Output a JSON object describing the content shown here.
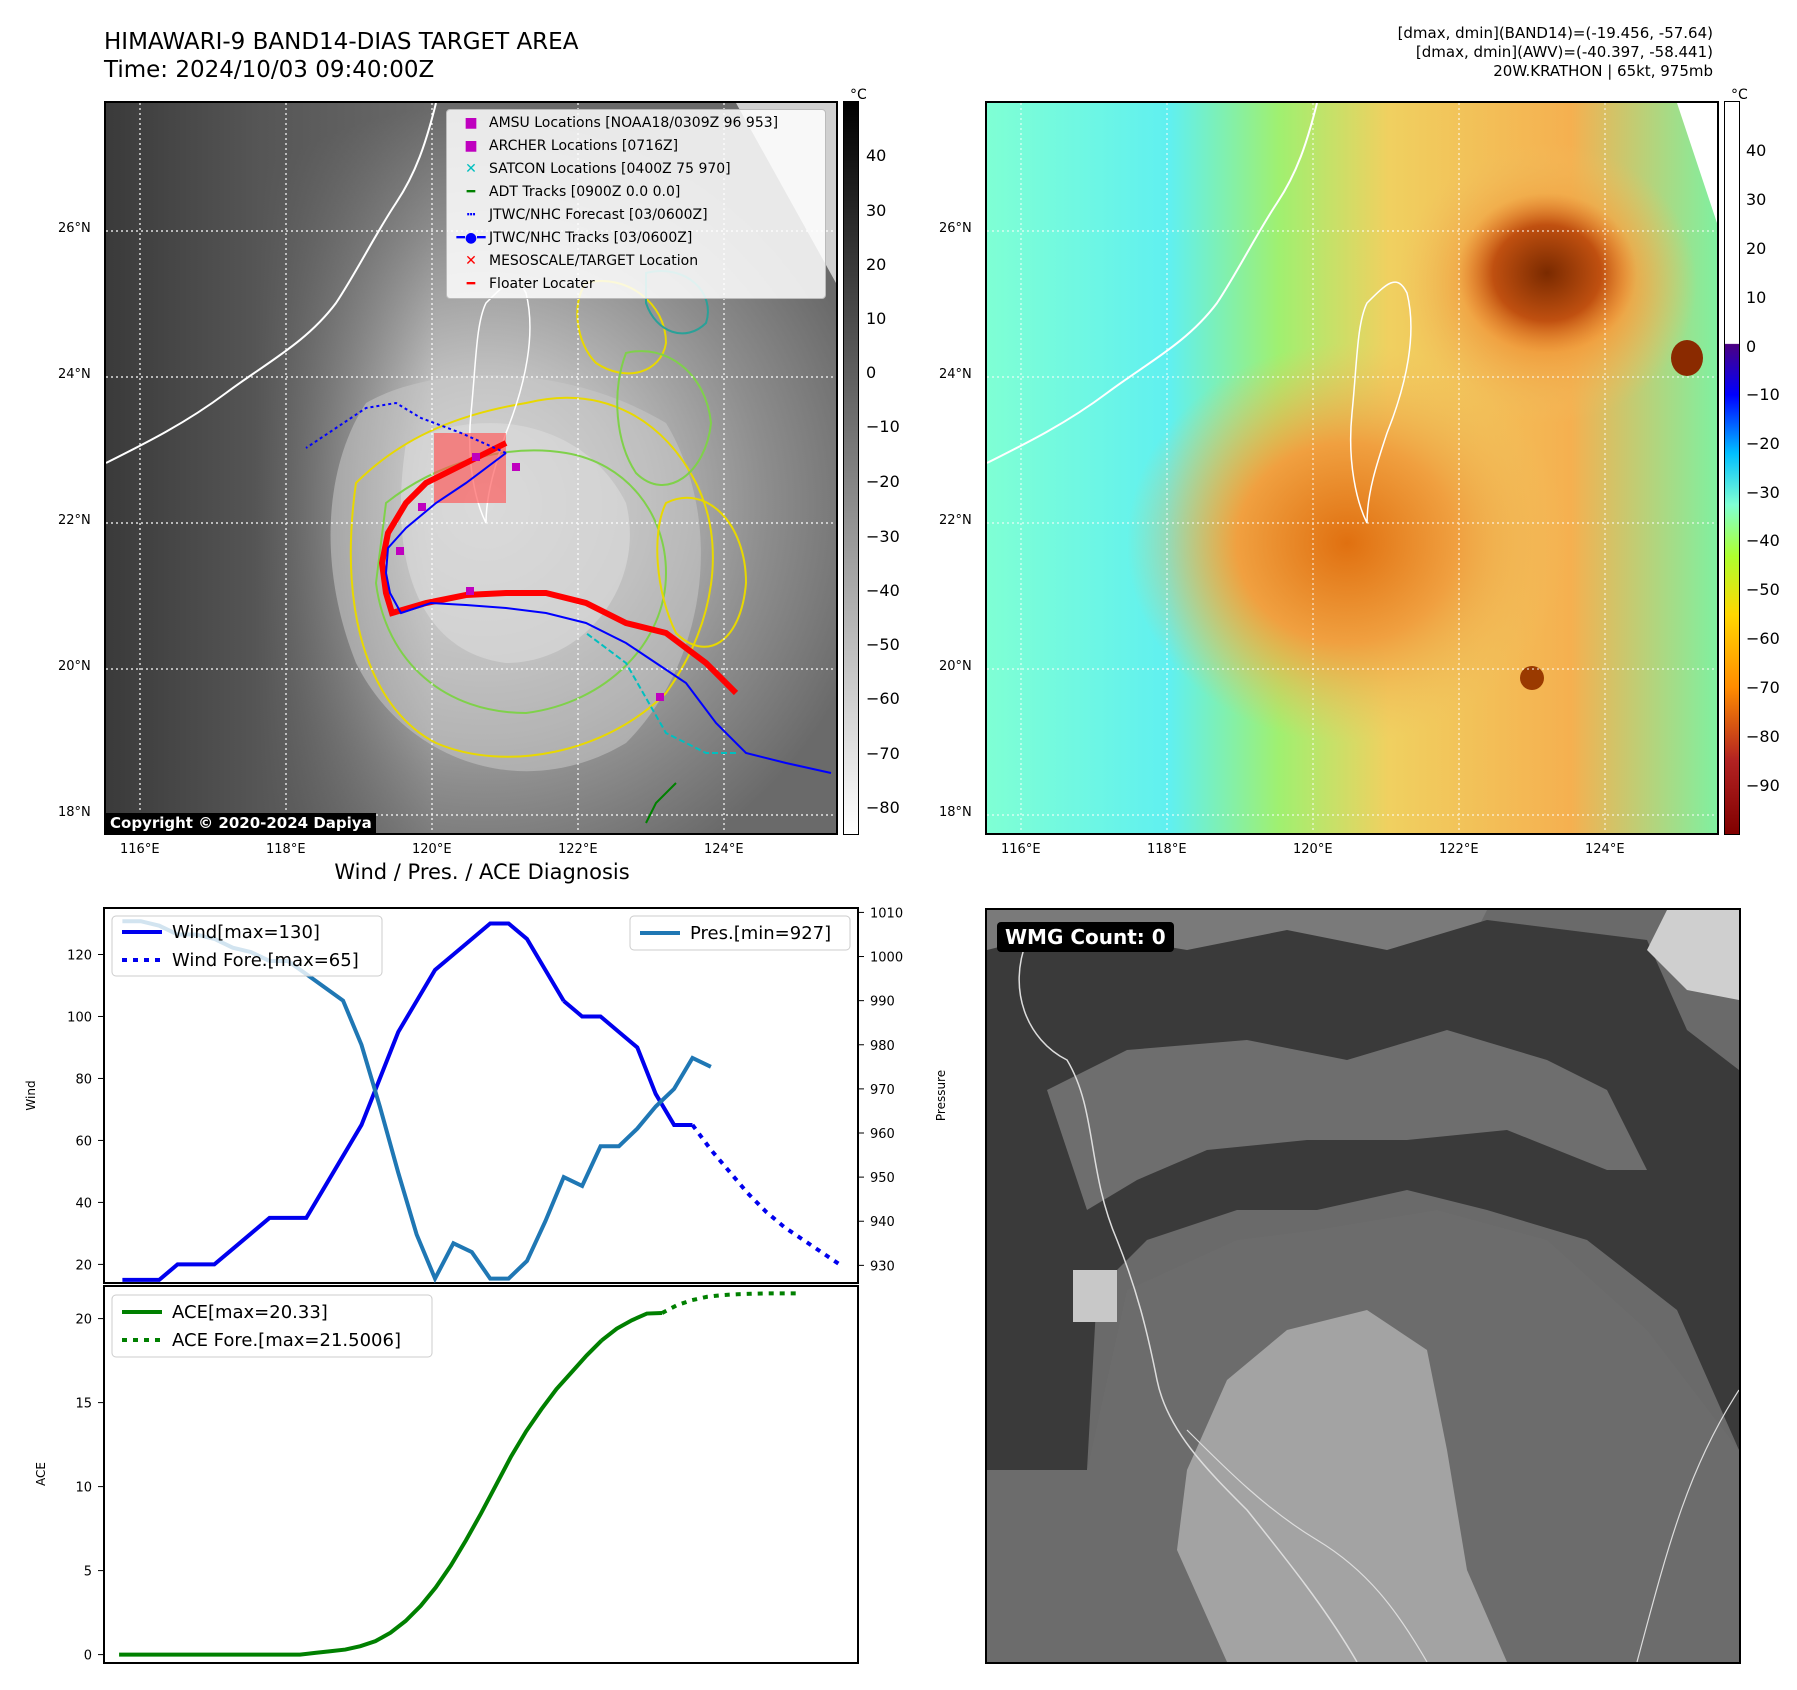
{
  "header": {
    "title": "HIMAWARI-9 BAND14-DIAS TARGET AREA",
    "time": "Time: 2024/10/03 09:40:00Z",
    "info_line1": "[dmax, dmin](BAND14)=(-19.456, -57.64)",
    "info_line2": "[dmax, dmin](AWV)=(-40.397, -58.441)",
    "info_line3": "20W.KRATHON | 65kt, 975mb"
  },
  "map_axes": {
    "lon_labels": [
      "116°E",
      "118°E",
      "120°E",
      "122°E",
      "124°E"
    ],
    "lat_labels": [
      "26°N",
      "24°N",
      "22°N",
      "20°N",
      "18°N"
    ]
  },
  "colorbar_band14": {
    "unit": "°C",
    "ticks": [
      "40",
      "30",
      "20",
      "10",
      "0",
      "−10",
      "−20",
      "−30",
      "−40",
      "−50",
      "−60",
      "−70",
      "−80"
    ]
  },
  "colorbar_awv": {
    "unit": "°C",
    "ticks": [
      "40",
      "30",
      "20",
      "10",
      "0",
      "−10",
      "−20",
      "−30",
      "−40",
      "−50",
      "−60",
      "−70",
      "−80",
      "−90"
    ]
  },
  "legend_map": {
    "amsu": "AMSU Locations [NOAA18/0309Z 96 953]",
    "archer": "ARCHER Locations [0716Z]",
    "satcon": "SATCON Locations [0400Z 75 970]",
    "adt": "ADT Tracks [0900Z 0.0 0.0]",
    "jtwc_forecast": "JTWC/NHC Forecast [03/0600Z]",
    "jtwc_tracks": "JTWC/NHC Tracks [03/0600Z]",
    "mesoscale": "MESOSCALE/TARGET Location",
    "floater": "Floater Locater"
  },
  "copyright": "Copyright © 2020-2024 Dapiya",
  "wmg": {
    "label": "WMG Count: 0"
  },
  "colors": {
    "wind": "#0000ee",
    "pressure": "#1f77b4",
    "ace": "#008000",
    "floater": "#ff0000",
    "amsu": "#bf00bf",
    "satcon": "#00bfbf"
  },
  "chart_data": [
    {
      "type": "line",
      "title": "Wind / Pres. / ACE Diagnosis",
      "ylabel": "Wind",
      "ylabel_right": "Pressure",
      "ylim": [
        14,
        135
      ],
      "ylim_right": [
        926,
        1011
      ],
      "yticks": [
        20,
        40,
        60,
        80,
        100,
        120
      ],
      "yticks_right": [
        930,
        940,
        950,
        960,
        970,
        980,
        990,
        1000,
        1010
      ],
      "legend": [
        "Wind[max=130]",
        "Wind Fore.[max=65]",
        "Pres.[min=927]"
      ],
      "series": [
        {
          "name": "Wind[max=130]",
          "x": [
            0,
            1,
            2,
            3,
            4,
            5,
            6,
            7,
            8,
            9,
            10,
            11,
            12,
            13,
            14,
            15,
            16,
            17,
            18,
            19,
            20,
            21,
            22,
            23,
            24
          ],
          "values": [
            15,
            15,
            15,
            20,
            20,
            20,
            25,
            30,
            35,
            35,
            35,
            45,
            55,
            65,
            80,
            95,
            105,
            115,
            120,
            125,
            130,
            130,
            125,
            115,
            105
          ]
        },
        {
          "name": "Wind[max=130] tail",
          "x": [
            24,
            25,
            26,
            27,
            28,
            29,
            30,
            31
          ],
          "values": [
            105,
            100,
            100,
            95,
            90,
            75,
            65,
            65
          ]
        },
        {
          "name": "Wind Fore.[max=65]",
          "x": [
            31,
            32,
            33,
            34,
            35,
            36,
            37,
            38,
            39
          ],
          "values": [
            65,
            57,
            50,
            43,
            37,
            32,
            28,
            24,
            20
          ]
        },
        {
          "name": "Pres.[min=927]",
          "x": [
            0,
            1,
            2,
            3,
            4,
            5,
            6,
            7,
            8,
            9,
            10,
            11,
            12,
            13,
            14,
            15,
            16,
            17,
            18,
            19,
            20,
            21,
            22,
            23,
            24,
            25,
            26,
            27,
            28,
            29,
            30,
            31,
            32
          ],
          "values": [
            1008,
            1008,
            1007,
            1005,
            1005,
            1004,
            1002,
            1001,
            999,
            999,
            996,
            993,
            990,
            980,
            966,
            951,
            937,
            927,
            935,
            933,
            927,
            927,
            931,
            940,
            950,
            948,
            957,
            957,
            961,
            966,
            970,
            977,
            975
          ]
        }
      ]
    },
    {
      "type": "line",
      "ylabel": "ACE",
      "ylim": [
        -0.5,
        22
      ],
      "yticks": [
        0,
        5,
        10,
        15,
        20
      ],
      "legend": [
        "ACE[max=20.33]",
        "ACE Fore.[max=21.5006]"
      ],
      "series": [
        {
          "name": "ACE[max=20.33]",
          "x": [
            0,
            2,
            4,
            6,
            8,
            10,
            12,
            13,
            14,
            15,
            16,
            17,
            18,
            19,
            20,
            21,
            22,
            23,
            24,
            25,
            26,
            27,
            28,
            29,
            30,
            31,
            32
          ],
          "values": [
            0,
            0,
            0,
            0,
            0,
            0,
            0,
            0.1,
            0.2,
            0.3,
            0.5,
            0.8,
            1.3,
            2.0,
            2.9,
            4.0,
            5.3,
            6.8,
            8.4,
            10.1,
            11.8,
            13.3,
            14.6,
            15.8,
            16.8,
            17.8,
            18.7
          ]
        },
        {
          "name": "ACE[max=20.33] tail",
          "x": [
            32,
            33,
            34,
            35,
            36
          ],
          "values": [
            18.7,
            19.4,
            19.9,
            20.3,
            20.33
          ]
        },
        {
          "name": "ACE Fore.[max=21.5006]",
          "x": [
            36,
            37,
            38,
            39,
            40,
            41,
            42,
            43,
            44,
            45
          ],
          "values": [
            20.33,
            20.8,
            21.1,
            21.3,
            21.4,
            21.45,
            21.48,
            21.5,
            21.5,
            21.5006
          ]
        }
      ]
    }
  ]
}
